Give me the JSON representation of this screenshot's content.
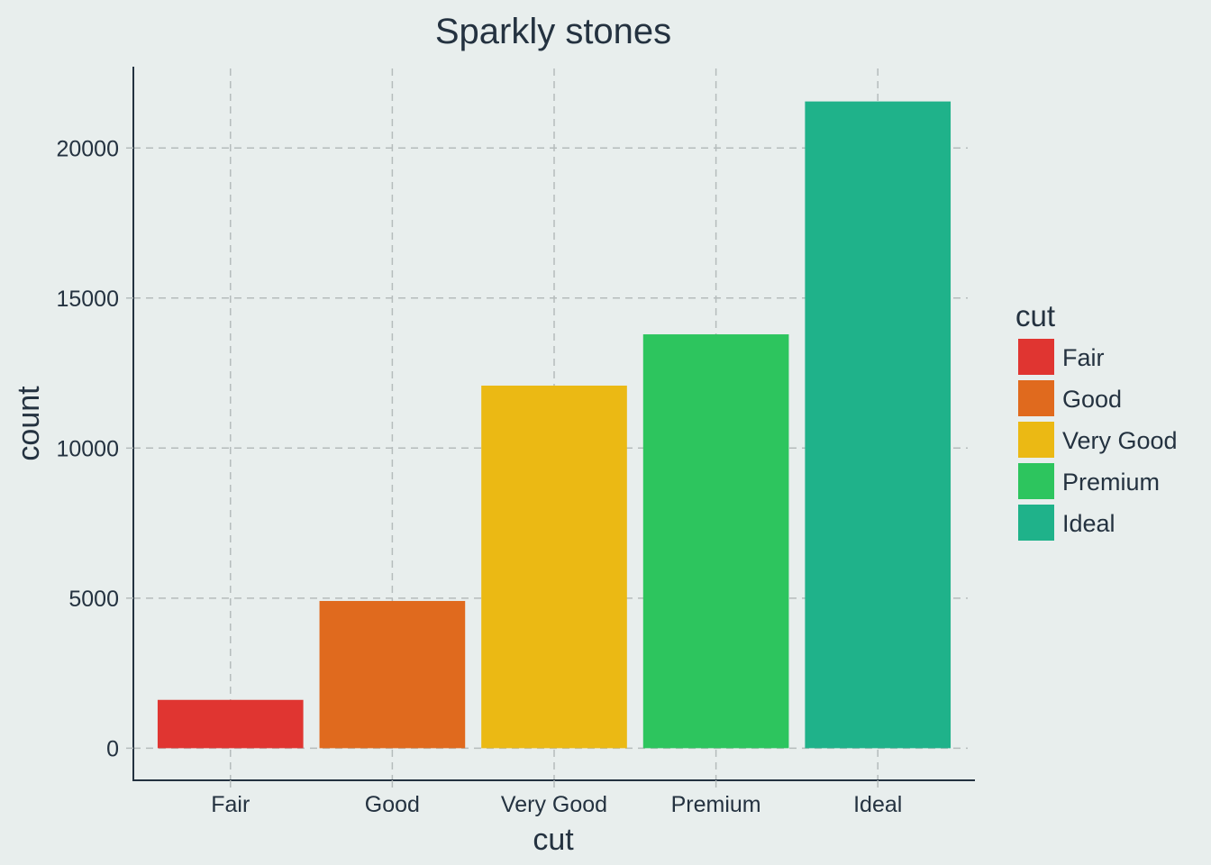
{
  "chart_data": {
    "type": "bar",
    "title": "Sparkly stones",
    "xlabel": "cut",
    "ylabel": "count",
    "categories": [
      "Fair",
      "Good",
      "Very Good",
      "Premium",
      "Ideal"
    ],
    "values": [
      1610,
      4906,
      12082,
      13791,
      21551
    ],
    "colors": [
      "#e03531",
      "#e06a1e",
      "#ebb914",
      "#2dc55e",
      "#1fb28a"
    ],
    "ylim": [
      -1070,
      22710
    ],
    "yticks": [
      0,
      5000,
      10000,
      15000,
      20000
    ],
    "grid": true,
    "grid_style": "dashed",
    "legend": {
      "title": "cut",
      "position": "right",
      "entries": [
        "Fair",
        "Good",
        "Very Good",
        "Premium",
        "Ideal"
      ]
    }
  }
}
